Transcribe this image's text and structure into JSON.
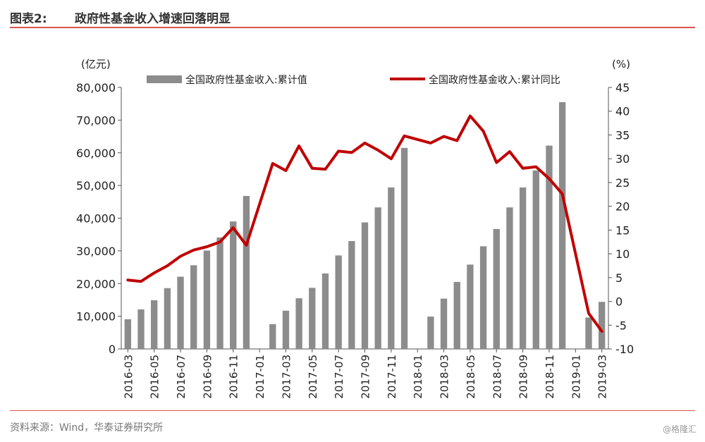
{
  "header": {
    "prefix": "图表2:",
    "title": "政府性基金收入增速回落明显"
  },
  "source": "资料来源：Wind，华泰证券研究所",
  "watermark": "@格隆汇",
  "colors": {
    "bar": "#8c8c8c",
    "line": "#c00000",
    "accent": "#d9534f"
  },
  "chart_data": {
    "type": "bar+line",
    "y_left_unit": "(亿元)",
    "y_right_unit": "(%)",
    "y_left_range": [
      0,
      80000
    ],
    "y_left_ticks": [
      "0",
      "10,000",
      "20,000",
      "30,000",
      "40,000",
      "50,000",
      "60,000",
      "70,000",
      "80,000"
    ],
    "y_right_range": [
      -10,
      45
    ],
    "y_right_ticks": [
      "-10",
      "-5",
      "0",
      "5",
      "10",
      "15",
      "20",
      "25",
      "30",
      "35",
      "40",
      "45"
    ],
    "legend_position": "top",
    "grid": false,
    "categories": [
      "2016-03",
      "2016-04",
      "2016-05",
      "2016-06",
      "2016-07",
      "2016-08",
      "2016-09",
      "2016-10",
      "2016-11",
      "2016-12",
      "2017-01",
      "2017-02",
      "2017-03",
      "2017-04",
      "2017-05",
      "2017-06",
      "2017-07",
      "2017-08",
      "2017-09",
      "2017-10",
      "2017-11",
      "2017-12",
      "2018-01",
      "2018-02",
      "2018-03",
      "2018-04",
      "2018-05",
      "2018-06",
      "2018-07",
      "2018-08",
      "2018-09",
      "2018-10",
      "2018-11",
      "2018-12",
      "2019-01",
      "2019-02",
      "2019-03"
    ],
    "x_tick_labels": [
      "2016-03",
      "2016-05",
      "2016-07",
      "2016-09",
      "2016-11",
      "2017-01",
      "2017-03",
      "2017-05",
      "2017-07",
      "2017-09",
      "2017-11",
      "2018-01",
      "2018-03",
      "2018-05",
      "2018-07",
      "2018-09",
      "2018-11",
      "2019-01",
      "2019-03"
    ],
    "series": [
      {
        "name": "全国政府性基金收入:累计值",
        "type": "bar",
        "values": [
          9100,
          12100,
          14900,
          18600,
          22100,
          25600,
          30100,
          34100,
          39000,
          46800,
          null,
          7600,
          11700,
          15500,
          18700,
          23100,
          28600,
          33000,
          38700,
          43300,
          49400,
          61500,
          null,
          9900,
          15400,
          20500,
          25800,
          31400,
          36700,
          43300,
          49400,
          54600,
          62200,
          75500,
          null,
          9600,
          14400
        ]
      },
      {
        "name": "全国政府性基金收入:累计同比",
        "type": "line",
        "values": [
          4.5,
          4.2,
          6.0,
          7.5,
          9.5,
          10.8,
          11.5,
          12.5,
          15.5,
          11.8,
          null,
          29.0,
          27.5,
          32.7,
          28.0,
          27.8,
          31.6,
          31.3,
          33.3,
          31.8,
          30.0,
          34.8,
          null,
          33.3,
          34.7,
          33.8,
          39.0,
          35.8,
          29.2,
          31.5,
          28.0,
          28.3,
          25.8,
          22.6,
          null,
          -2.5,
          -6.3
        ]
      }
    ]
  }
}
